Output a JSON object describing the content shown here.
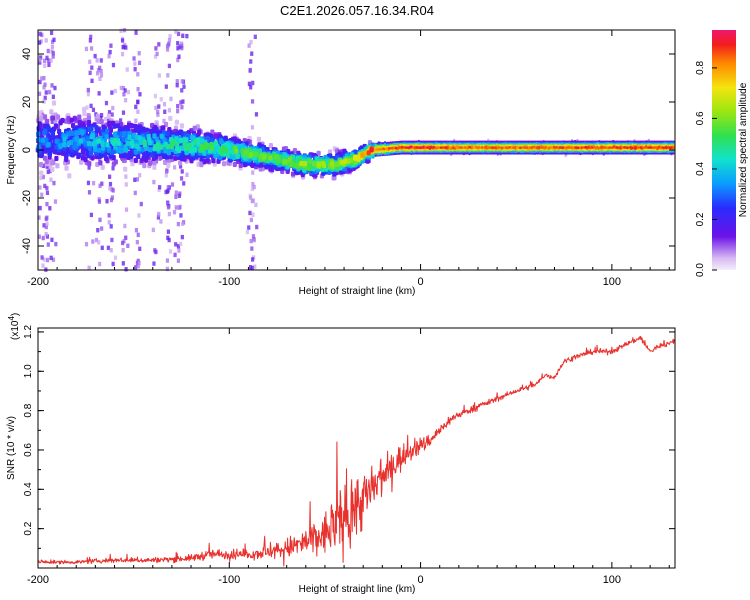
{
  "title": "C2E1.2026.057.16.34.R04",
  "colors": {
    "snr_line": "#e8302c",
    "axis": "#000000"
  },
  "chart_data": [
    {
      "type": "heatmap",
      "title": "C2E1.2026.057.16.34.R04",
      "xlabel": "Height of straight line (km)",
      "ylabel": "Frequency (Hz)",
      "xlim": [
        -200,
        133
      ],
      "ylim": [
        -50,
        50
      ],
      "xticks": [
        -200,
        -100,
        0,
        100
      ],
      "xtick_labels": [
        "-200",
        "-100",
        "0",
        "100"
      ],
      "yticks": [
        -40,
        -20,
        0,
        20,
        40
      ],
      "ytick_labels": [
        "-40",
        "-20",
        "0",
        "20",
        "40"
      ],
      "colorbar": {
        "label": "Normalized spectral amplitude",
        "range": [
          0,
          0.95
        ],
        "ticks": [
          0.0,
          0.2,
          0.4,
          0.6,
          0.8
        ],
        "tick_labels": [
          "0.0",
          "0.2",
          "0.4",
          "0.6",
          "0.8"
        ]
      },
      "ridge": {
        "x": [
          -200,
          -180,
          -150,
          -120,
          -100,
          -80,
          -60,
          -45,
          -35,
          -25,
          -10,
          0,
          20,
          60,
          100,
          133
        ],
        "freq": [
          4,
          4,
          3,
          2,
          0,
          -3,
          -6,
          -6,
          -4,
          0,
          1,
          1,
          1,
          1,
          1,
          1
        ],
        "peak_amplitude": [
          0.3,
          0.35,
          0.4,
          0.45,
          0.5,
          0.5,
          0.55,
          0.55,
          0.6,
          0.8,
          0.9,
          0.92,
          0.85,
          0.85,
          0.88,
          0.9
        ],
        "spread_hz": [
          14,
          13,
          11,
          9,
          7,
          6,
          6,
          6,
          5,
          4,
          3,
          3,
          3,
          3,
          3,
          3
        ]
      },
      "noise_columns_x": [
        -198,
        -195,
        -193,
        -173,
        -168,
        -162,
        -155,
        -148,
        -138,
        -132,
        -127,
        -125,
        -88
      ]
    },
    {
      "type": "line",
      "xlabel": "Height of straight line (km)",
      "ylabel": "SNR (10 * v/v)",
      "yscale_label": "(x10",
      "yscale_exponent": "4",
      "yscale_suffix": ")",
      "xlim": [
        -200,
        133
      ],
      "ylim": [
        0,
        1.22
      ],
      "xticks": [
        -200,
        -100,
        0,
        100
      ],
      "xtick_labels": [
        "-200",
        "-100",
        "0",
        "100"
      ],
      "yticks": [
        0.2,
        0.4,
        0.6,
        0.8,
        1.0,
        1.2
      ],
      "ytick_labels": [
        "0.2",
        "0.4",
        "0.6",
        "0.8",
        "1.0",
        "1.2"
      ],
      "series": [
        {
          "name": "SNR",
          "x": [
            -200,
            -180,
            -160,
            -140,
            -120,
            -110,
            -100,
            -90,
            -80,
            -70,
            -60,
            -50,
            -45,
            -40,
            -35,
            -30,
            -25,
            -20,
            -15,
            -10,
            -5,
            0,
            5,
            10,
            15,
            20,
            25,
            30,
            40,
            50,
            60,
            65,
            70,
            75,
            80,
            90,
            100,
            110,
            115,
            120,
            125,
            133
          ],
          "y": [
            0.03,
            0.03,
            0.04,
            0.04,
            0.05,
            0.07,
            0.07,
            0.07,
            0.08,
            0.1,
            0.13,
            0.17,
            0.22,
            0.25,
            0.3,
            0.35,
            0.4,
            0.45,
            0.52,
            0.56,
            0.6,
            0.62,
            0.65,
            0.7,
            0.75,
            0.78,
            0.8,
            0.82,
            0.86,
            0.9,
            0.93,
            0.98,
            0.97,
            1.05,
            1.07,
            1.1,
            1.1,
            1.15,
            1.17,
            1.1,
            1.13,
            1.15
          ],
          "noise": [
            0.01,
            0.01,
            0.015,
            0.015,
            0.02,
            0.03,
            0.03,
            0.03,
            0.04,
            0.06,
            0.09,
            0.13,
            0.17,
            0.2,
            0.2,
            0.18,
            0.16,
            0.13,
            0.1,
            0.08,
            0.06,
            0.05,
            0.04,
            0.03,
            0.03,
            0.02,
            0.02,
            0.02,
            0.015,
            0.015,
            0.015,
            0.015,
            0.015,
            0.015,
            0.015,
            0.015,
            0.015,
            0.015,
            0.02,
            0.015,
            0.015,
            0.015
          ]
        }
      ]
    }
  ]
}
